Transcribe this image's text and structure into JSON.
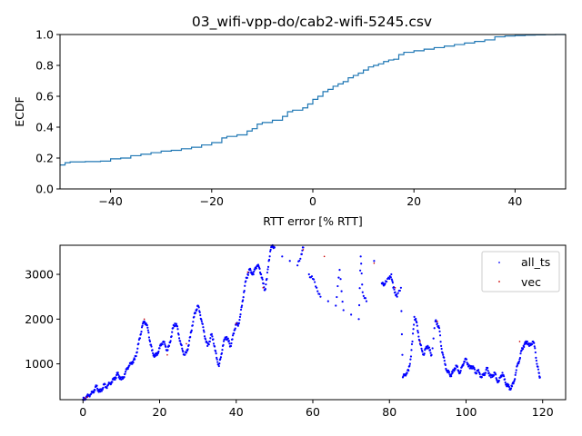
{
  "chart_data": [
    {
      "type": "line",
      "title": "03_wifi-vpp-do/cab2-wifi-5245.csv",
      "xlabel": "RTT error [% RTT]",
      "ylabel": "ECDF",
      "xlim": [
        -50,
        50
      ],
      "ylim": [
        0,
        1.0
      ],
      "xticks": [
        -40,
        -20,
        0,
        20,
        40
      ],
      "xtick_labels": [
        "−40",
        "−20",
        "0",
        "20",
        "40"
      ],
      "yticks": [
        0.0,
        0.2,
        0.4,
        0.6,
        0.8,
        1.0
      ],
      "ytick_labels": [
        "0.0",
        "0.2",
        "0.4",
        "0.6",
        "0.8",
        "1.0"
      ],
      "grid": false,
      "color": "#1f77b4",
      "series": [
        {
          "x": [
            -50,
            -49,
            -48,
            -46,
            -45,
            -42,
            -40,
            -38,
            -36,
            -34,
            -32,
            -30,
            -28,
            -26,
            -24,
            -22,
            -20,
            -18,
            -17,
            -15,
            -13,
            -12,
            -11,
            -10,
            -8,
            -6,
            -5,
            -4,
            -2,
            -1,
            0,
            1,
            2,
            3,
            4,
            5,
            6,
            7,
            8,
            9,
            10,
            11,
            12,
            13,
            14,
            15,
            16,
            17,
            18,
            20,
            22,
            24,
            26,
            28,
            30,
            32,
            34,
            36,
            38,
            40,
            42,
            44,
            46,
            48,
            50
          ],
          "y": [
            0.155,
            0.17,
            0.175,
            0.175,
            0.177,
            0.18,
            0.195,
            0.2,
            0.215,
            0.225,
            0.235,
            0.245,
            0.25,
            0.26,
            0.27,
            0.285,
            0.3,
            0.33,
            0.34,
            0.35,
            0.375,
            0.39,
            0.42,
            0.43,
            0.445,
            0.47,
            0.5,
            0.51,
            0.525,
            0.55,
            0.58,
            0.6,
            0.63,
            0.645,
            0.665,
            0.68,
            0.695,
            0.72,
            0.735,
            0.75,
            0.77,
            0.79,
            0.8,
            0.81,
            0.825,
            0.835,
            0.84,
            0.87,
            0.885,
            0.895,
            0.905,
            0.915,
            0.925,
            0.935,
            0.945,
            0.955,
            0.965,
            0.985,
            0.99,
            0.993,
            0.996,
            0.998,
            0.999,
            1.0,
            1.0
          ]
        }
      ]
    },
    {
      "type": "scatter",
      "xlim": [
        -6,
        126
      ],
      "ylim": [
        200,
        3650
      ],
      "xticks": [
        0,
        20,
        40,
        60,
        80,
        100,
        120
      ],
      "xtick_labels": [
        "0",
        "20",
        "40",
        "60",
        "80",
        "100",
        "120"
      ],
      "yticks": [
        1000,
        2000,
        3000
      ],
      "ytick_labels": [
        "1000",
        "2000",
        "3000"
      ],
      "legend_position": "top-right",
      "grid": false,
      "series": [
        {
          "name": "all_ts",
          "color": "#0000ff",
          "points": [
            [
              0,
              200
            ],
            [
              0.5,
              230
            ],
            [
              1,
              260
            ],
            [
              1.5,
              300
            ],
            [
              2,
              320
            ],
            [
              2.5,
              360
            ],
            [
              3,
              420
            ],
            [
              3.5,
              500
            ],
            [
              4,
              420
            ],
            [
              4.5,
              380
            ],
            [
              5,
              440
            ],
            [
              5.5,
              540
            ],
            [
              6,
              480
            ],
            [
              6.5,
              520
            ],
            [
              7,
              560
            ],
            [
              7.5,
              600
            ],
            [
              8,
              650
            ],
            [
              8.5,
              700
            ],
            [
              9,
              780
            ],
            [
              9.5,
              720
            ],
            [
              10,
              650
            ],
            [
              10.5,
              700
            ],
            [
              11,
              780
            ],
            [
              11.5,
              900
            ],
            [
              12,
              960
            ],
            [
              12.5,
              1000
            ],
            [
              13,
              1050
            ],
            [
              13.5,
              1100
            ],
            [
              14,
              1250
            ],
            [
              14.5,
              1450
            ],
            [
              15,
              1650
            ],
            [
              15.5,
              1850
            ],
            [
              16,
              1950
            ],
            [
              16.5,
              1900
            ],
            [
              17,
              1750
            ],
            [
              17.5,
              1500
            ],
            [
              18,
              1300
            ],
            [
              18.5,
              1200
            ],
            [
              19,
              1180
            ],
            [
              19.5,
              1250
            ],
            [
              20,
              1350
            ],
            [
              20.5,
              1450
            ],
            [
              21,
              1500
            ],
            [
              21.5,
              1400
            ],
            [
              22,
              1300
            ],
            [
              22.5,
              1400
            ],
            [
              23,
              1600
            ],
            [
              23.5,
              1800
            ],
            [
              24,
              1900
            ],
            [
              24.5,
              1850
            ],
            [
              25,
              1650
            ],
            [
              25.5,
              1450
            ],
            [
              26,
              1300
            ],
            [
              26.5,
              1200
            ],
            [
              27,
              1250
            ],
            [
              27.5,
              1400
            ],
            [
              28,
              1600
            ],
            [
              28.5,
              1850
            ],
            [
              29,
              2050
            ],
            [
              29.5,
              2200
            ],
            [
              30,
              2300
            ],
            [
              30.5,
              2150
            ],
            [
              31,
              1950
            ],
            [
              31.5,
              1750
            ],
            [
              32,
              1550
            ],
            [
              32.5,
              1400
            ],
            [
              33,
              1500
            ],
            [
              33.5,
              1650
            ],
            [
              34,
              1550
            ],
            [
              34.5,
              1300
            ],
            [
              35,
              1100
            ],
            [
              35.5,
              950
            ],
            [
              36,
              1150
            ],
            [
              36.5,
              1400
            ],
            [
              37,
              1550
            ],
            [
              37.5,
              1600
            ],
            [
              38,
              1500
            ],
            [
              38.5,
              1400
            ],
            [
              39,
              1550
            ],
            [
              39.5,
              1750
            ],
            [
              40,
              1900
            ],
            [
              40.5,
              1850
            ],
            [
              41,
              2050
            ],
            [
              41.5,
              2300
            ],
            [
              42,
              2600
            ],
            [
              42.5,
              2850
            ],
            [
              43,
              3000
            ],
            [
              43.5,
              3100
            ],
            [
              44,
              3050
            ],
            [
              44.5,
              3000
            ],
            [
              45,
              3150
            ],
            [
              45.5,
              3200
            ],
            [
              46,
              3150
            ],
            [
              46.5,
              3000
            ],
            [
              47,
              2800
            ],
            [
              47.5,
              2650
            ],
            [
              48,
              2900
            ],
            [
              48.5,
              3300
            ],
            [
              49,
              3550
            ],
            [
              49.5,
              3650
            ],
            [
              50,
              3600
            ],
            [
              52,
              3400
            ],
            [
              54,
              3300
            ],
            [
              56,
              3200
            ],
            [
              57,
              3450
            ],
            [
              57.5,
              3600
            ],
            [
              59,
              3000
            ],
            [
              60,
              2900
            ],
            [
              61,
              2700
            ],
            [
              62,
              2500
            ],
            [
              64,
              2400
            ],
            [
              66,
              2300
            ],
            [
              67,
              3100
            ],
            [
              68,
              2200
            ],
            [
              70,
              2100
            ],
            [
              72,
              2000
            ],
            [
              72.5,
              3400
            ],
            [
              73,
              2600
            ],
            [
              74,
              2400
            ],
            [
              76,
              3300
            ],
            [
              78,
              2800
            ],
            [
              78.5,
              2750
            ],
            [
              79,
              2850
            ],
            [
              80,
              2900
            ],
            [
              80.5,
              3000
            ],
            [
              81,
              2700
            ],
            [
              81.5,
              2600
            ],
            [
              82,
              2500
            ],
            [
              83,
              2700
            ],
            [
              83.5,
              700
            ],
            [
              84,
              750
            ],
            [
              84.5,
              800
            ],
            [
              85,
              850
            ],
            [
              85.5,
              1100
            ],
            [
              86,
              1500
            ],
            [
              86.5,
              2050
            ],
            [
              87,
              1950
            ],
            [
              87.5,
              1700
            ],
            [
              88,
              1450
            ],
            [
              88.5,
              1300
            ],
            [
              89,
              1200
            ],
            [
              89.5,
              1350
            ],
            [
              90,
              1400
            ],
            [
              90.5,
              1300
            ],
            [
              91,
              1200
            ],
            [
              92,
              1950
            ],
            [
              92.5,
              1900
            ],
            [
              93,
              1800
            ],
            [
              93.5,
              1400
            ],
            [
              94,
              1200
            ],
            [
              94.5,
              1000
            ],
            [
              95,
              850
            ],
            [
              95.5,
              800
            ],
            [
              96,
              750
            ],
            [
              96.5,
              800
            ],
            [
              97,
              900
            ],
            [
              97.5,
              950
            ],
            [
              98,
              850
            ],
            [
              98.5,
              800
            ],
            [
              99,
              950
            ],
            [
              99.5,
              1050
            ],
            [
              100,
              1100
            ],
            [
              100.5,
              1000
            ],
            [
              101,
              900
            ],
            [
              101.5,
              950
            ],
            [
              102,
              900
            ],
            [
              102.5,
              800
            ],
            [
              103,
              850
            ],
            [
              103.5,
              800
            ],
            [
              104,
              700
            ],
            [
              104.5,
              750
            ],
            [
              105,
              800
            ],
            [
              105.5,
              900
            ],
            [
              106,
              800
            ],
            [
              106.5,
              700
            ],
            [
              107,
              750
            ],
            [
              107.5,
              800
            ],
            [
              108,
              650
            ],
            [
              108.5,
              600
            ],
            [
              109,
              700
            ],
            [
              109.5,
              800
            ],
            [
              110,
              650
            ],
            [
              110.5,
              550
            ],
            [
              111,
              500
            ],
            [
              111.5,
              450
            ],
            [
              112,
              500
            ],
            [
              112.5,
              600
            ],
            [
              113,
              800
            ],
            [
              113.5,
              1000
            ],
            [
              114,
              1100
            ],
            [
              114.5,
              1300
            ],
            [
              115,
              1400
            ],
            [
              115.5,
              1450
            ],
            [
              116,
              1500
            ],
            [
              116.5,
              1400
            ],
            [
              117,
              1450
            ],
            [
              117.5,
              1500
            ],
            [
              118,
              1350
            ],
            [
              118.5,
              1000
            ],
            [
              119,
              800
            ],
            [
              119.3,
              700
            ]
          ]
        },
        {
          "name": "vec",
          "color": "#cc0000",
          "points": [
            [
              0.5,
              240
            ],
            [
              1.2,
              260
            ],
            [
              16,
              2000
            ],
            [
              22,
              1200
            ],
            [
              27,
              1450
            ],
            [
              40,
              1900
            ],
            [
              43,
              3050
            ],
            [
              47,
              2700
            ],
            [
              57.5,
              3550
            ],
            [
              63,
              3400
            ],
            [
              76,
              3250
            ],
            [
              81.5,
              2700
            ],
            [
              88,
              1500
            ],
            [
              92.5,
              1950
            ],
            [
              114,
              1500
            ]
          ]
        }
      ]
    }
  ]
}
